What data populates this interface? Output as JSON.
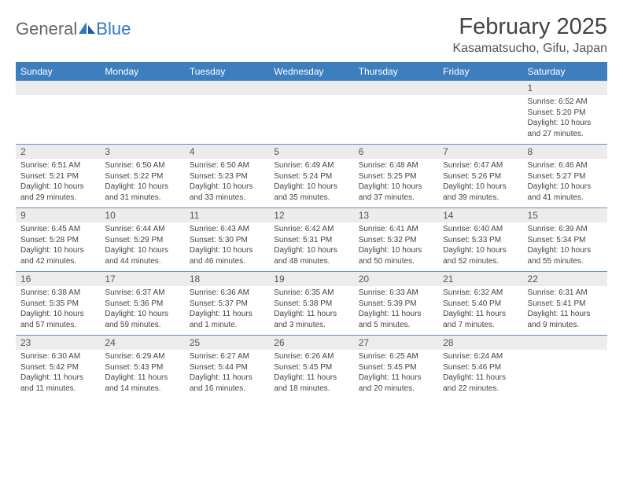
{
  "brand": {
    "part1": "General",
    "part2": "Blue"
  },
  "title": "February 2025",
  "location": "Kasamatsucho, Gifu, Japan",
  "colors": {
    "header_bg": "#3d7ebf",
    "header_text": "#ffffff",
    "row_border": "#6a8db3",
    "daynum_bg": "#ececec",
    "brand_blue": "#2f78c2",
    "text": "#444444"
  },
  "fonts": {
    "title_size": 29,
    "location_size": 16,
    "dow_size": 12,
    "daynum_size": 12,
    "body_size": 10
  },
  "dow": [
    "Sunday",
    "Monday",
    "Tuesday",
    "Wednesday",
    "Thursday",
    "Friday",
    "Saturday"
  ],
  "weeks": [
    [
      {
        "n": "",
        "sr": "",
        "ss": "",
        "dl": ""
      },
      {
        "n": "",
        "sr": "",
        "ss": "",
        "dl": ""
      },
      {
        "n": "",
        "sr": "",
        "ss": "",
        "dl": ""
      },
      {
        "n": "",
        "sr": "",
        "ss": "",
        "dl": ""
      },
      {
        "n": "",
        "sr": "",
        "ss": "",
        "dl": ""
      },
      {
        "n": "",
        "sr": "",
        "ss": "",
        "dl": ""
      },
      {
        "n": "1",
        "sr": "Sunrise: 6:52 AM",
        "ss": "Sunset: 5:20 PM",
        "dl": "Daylight: 10 hours and 27 minutes."
      }
    ],
    [
      {
        "n": "2",
        "sr": "Sunrise: 6:51 AM",
        "ss": "Sunset: 5:21 PM",
        "dl": "Daylight: 10 hours and 29 minutes."
      },
      {
        "n": "3",
        "sr": "Sunrise: 6:50 AM",
        "ss": "Sunset: 5:22 PM",
        "dl": "Daylight: 10 hours and 31 minutes."
      },
      {
        "n": "4",
        "sr": "Sunrise: 6:50 AM",
        "ss": "Sunset: 5:23 PM",
        "dl": "Daylight: 10 hours and 33 minutes."
      },
      {
        "n": "5",
        "sr": "Sunrise: 6:49 AM",
        "ss": "Sunset: 5:24 PM",
        "dl": "Daylight: 10 hours and 35 minutes."
      },
      {
        "n": "6",
        "sr": "Sunrise: 6:48 AM",
        "ss": "Sunset: 5:25 PM",
        "dl": "Daylight: 10 hours and 37 minutes."
      },
      {
        "n": "7",
        "sr": "Sunrise: 6:47 AM",
        "ss": "Sunset: 5:26 PM",
        "dl": "Daylight: 10 hours and 39 minutes."
      },
      {
        "n": "8",
        "sr": "Sunrise: 6:46 AM",
        "ss": "Sunset: 5:27 PM",
        "dl": "Daylight: 10 hours and 41 minutes."
      }
    ],
    [
      {
        "n": "9",
        "sr": "Sunrise: 6:45 AM",
        "ss": "Sunset: 5:28 PM",
        "dl": "Daylight: 10 hours and 42 minutes."
      },
      {
        "n": "10",
        "sr": "Sunrise: 6:44 AM",
        "ss": "Sunset: 5:29 PM",
        "dl": "Daylight: 10 hours and 44 minutes."
      },
      {
        "n": "11",
        "sr": "Sunrise: 6:43 AM",
        "ss": "Sunset: 5:30 PM",
        "dl": "Daylight: 10 hours and 46 minutes."
      },
      {
        "n": "12",
        "sr": "Sunrise: 6:42 AM",
        "ss": "Sunset: 5:31 PM",
        "dl": "Daylight: 10 hours and 48 minutes."
      },
      {
        "n": "13",
        "sr": "Sunrise: 6:41 AM",
        "ss": "Sunset: 5:32 PM",
        "dl": "Daylight: 10 hours and 50 minutes."
      },
      {
        "n": "14",
        "sr": "Sunrise: 6:40 AM",
        "ss": "Sunset: 5:33 PM",
        "dl": "Daylight: 10 hours and 52 minutes."
      },
      {
        "n": "15",
        "sr": "Sunrise: 6:39 AM",
        "ss": "Sunset: 5:34 PM",
        "dl": "Daylight: 10 hours and 55 minutes."
      }
    ],
    [
      {
        "n": "16",
        "sr": "Sunrise: 6:38 AM",
        "ss": "Sunset: 5:35 PM",
        "dl": "Daylight: 10 hours and 57 minutes."
      },
      {
        "n": "17",
        "sr": "Sunrise: 6:37 AM",
        "ss": "Sunset: 5:36 PM",
        "dl": "Daylight: 10 hours and 59 minutes."
      },
      {
        "n": "18",
        "sr": "Sunrise: 6:36 AM",
        "ss": "Sunset: 5:37 PM",
        "dl": "Daylight: 11 hours and 1 minute."
      },
      {
        "n": "19",
        "sr": "Sunrise: 6:35 AM",
        "ss": "Sunset: 5:38 PM",
        "dl": "Daylight: 11 hours and 3 minutes."
      },
      {
        "n": "20",
        "sr": "Sunrise: 6:33 AM",
        "ss": "Sunset: 5:39 PM",
        "dl": "Daylight: 11 hours and 5 minutes."
      },
      {
        "n": "21",
        "sr": "Sunrise: 6:32 AM",
        "ss": "Sunset: 5:40 PM",
        "dl": "Daylight: 11 hours and 7 minutes."
      },
      {
        "n": "22",
        "sr": "Sunrise: 6:31 AM",
        "ss": "Sunset: 5:41 PM",
        "dl": "Daylight: 11 hours and 9 minutes."
      }
    ],
    [
      {
        "n": "23",
        "sr": "Sunrise: 6:30 AM",
        "ss": "Sunset: 5:42 PM",
        "dl": "Daylight: 11 hours and 11 minutes."
      },
      {
        "n": "24",
        "sr": "Sunrise: 6:29 AM",
        "ss": "Sunset: 5:43 PM",
        "dl": "Daylight: 11 hours and 14 minutes."
      },
      {
        "n": "25",
        "sr": "Sunrise: 6:27 AM",
        "ss": "Sunset: 5:44 PM",
        "dl": "Daylight: 11 hours and 16 minutes."
      },
      {
        "n": "26",
        "sr": "Sunrise: 6:26 AM",
        "ss": "Sunset: 5:45 PM",
        "dl": "Daylight: 11 hours and 18 minutes."
      },
      {
        "n": "27",
        "sr": "Sunrise: 6:25 AM",
        "ss": "Sunset: 5:45 PM",
        "dl": "Daylight: 11 hours and 20 minutes."
      },
      {
        "n": "28",
        "sr": "Sunrise: 6:24 AM",
        "ss": "Sunset: 5:46 PM",
        "dl": "Daylight: 11 hours and 22 minutes."
      },
      {
        "n": "",
        "sr": "",
        "ss": "",
        "dl": ""
      }
    ]
  ]
}
